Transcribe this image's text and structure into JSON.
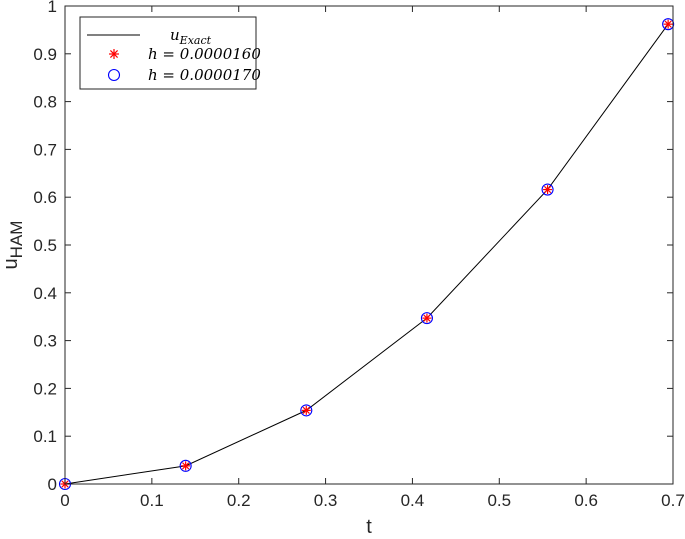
{
  "chart_data": {
    "type": "line",
    "xlabel": "t",
    "ylabel": {
      "main": "u",
      "subscript": "HAM"
    },
    "xlim": [
      0,
      0.7
    ],
    "ylim": [
      0,
      1
    ],
    "xticks": [
      0,
      0.1,
      0.2,
      0.3,
      0.4,
      0.5,
      0.6,
      0.7
    ],
    "yticks": [
      0,
      0.1,
      0.2,
      0.3,
      0.4,
      0.5,
      0.6,
      0.7,
      0.8,
      0.9,
      1
    ],
    "xtick_labels": [
      "0",
      "0.1",
      "0.2",
      "0.3",
      "0.4",
      "0.5",
      "0.6",
      "0.7"
    ],
    "ytick_labels": [
      "0",
      "0.1",
      "0.2",
      "0.3",
      "0.4",
      "0.5",
      "0.6",
      "0.7",
      "0.8",
      "0.9",
      "1"
    ],
    "grid": false,
    "legend_position": "top-left",
    "x": [
      0,
      0.1389,
      0.2778,
      0.4167,
      0.5556,
      0.6944
    ],
    "series": [
      {
        "name": {
          "main": "u",
          "subscript": "Exact"
        },
        "style": "line",
        "color": "#000000",
        "values": [
          0,
          0.038,
          0.154,
          0.347,
          0.616,
          0.962
        ]
      },
      {
        "name": "h = 0.0000160",
        "style": "asterisk",
        "color": "#ff0000",
        "values": [
          0,
          0.038,
          0.154,
          0.347,
          0.616,
          0.962
        ]
      },
      {
        "name": "h = 0.0000170",
        "style": "circle",
        "color": "#0000ff",
        "values": [
          0,
          0.038,
          0.154,
          0.347,
          0.616,
          0.962
        ]
      }
    ]
  }
}
